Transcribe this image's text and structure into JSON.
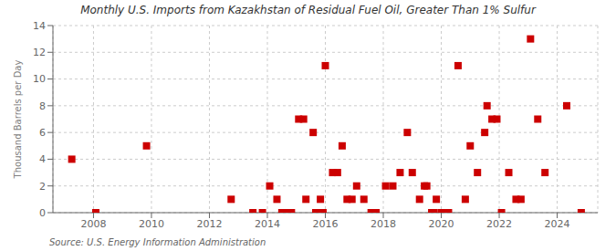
{
  "chart_data": {
    "type": "scatter",
    "title": "Monthly U.S. Imports from Kazakhstan of Residual Fuel Oil, Greater Than 1% Sulfur",
    "y_label": "Thousand Barrels per Day",
    "annotations": [
      "Source: U.S. Energy Information Administration"
    ],
    "color": "#cc0000",
    "marker": "square",
    "grid": true,
    "xlim": [
      2006.6,
      2025.4
    ],
    "xticks": [
      2008,
      2010,
      2012,
      2014,
      2016,
      2018,
      2020,
      2022,
      2024
    ],
    "ylim": [
      0,
      14
    ],
    "yticks": [
      0,
      2,
      4,
      6,
      8,
      10,
      12,
      14
    ],
    "x": [
      2007.25,
      2008.08,
      2009.83,
      2012.75,
      2013.5,
      2013.83,
      2014.08,
      2014.33,
      2014.5,
      2014.58,
      2014.67,
      2014.75,
      2014.83,
      2015.08,
      2015.25,
      2015.33,
      2015.58,
      2015.67,
      2015.83,
      2015.92,
      2016.0,
      2016.25,
      2016.42,
      2016.58,
      2016.75,
      2016.92,
      2017.08,
      2017.33,
      2017.58,
      2017.75,
      2018.08,
      2018.33,
      2018.58,
      2018.83,
      2019.0,
      2019.25,
      2019.42,
      2019.5,
      2019.67,
      2019.75,
      2019.83,
      2020.0,
      2020.08,
      2020.17,
      2020.25,
      2020.58,
      2020.83,
      2021.0,
      2021.25,
      2021.5,
      2021.58,
      2021.75,
      2021.92,
      2022.08,
      2022.33,
      2022.58,
      2022.75,
      2023.08,
      2023.33,
      2023.58,
      2024.33,
      2024.83
    ],
    "values": [
      4,
      0,
      5,
      1,
      0,
      0,
      2,
      1,
      0,
      0,
      0,
      0,
      0,
      7,
      7,
      1,
      6,
      0,
      1,
      0,
      11,
      3,
      3,
      5,
      1,
      1,
      2,
      1,
      0,
      0,
      2,
      2,
      3,
      6,
      3,
      1,
      2,
      2,
      0,
      0,
      1,
      0,
      0,
      0,
      0,
      11,
      1,
      5,
      3,
      6,
      8,
      7,
      7,
      0,
      3,
      1,
      1,
      13,
      7,
      3,
      8,
      0
    ]
  }
}
